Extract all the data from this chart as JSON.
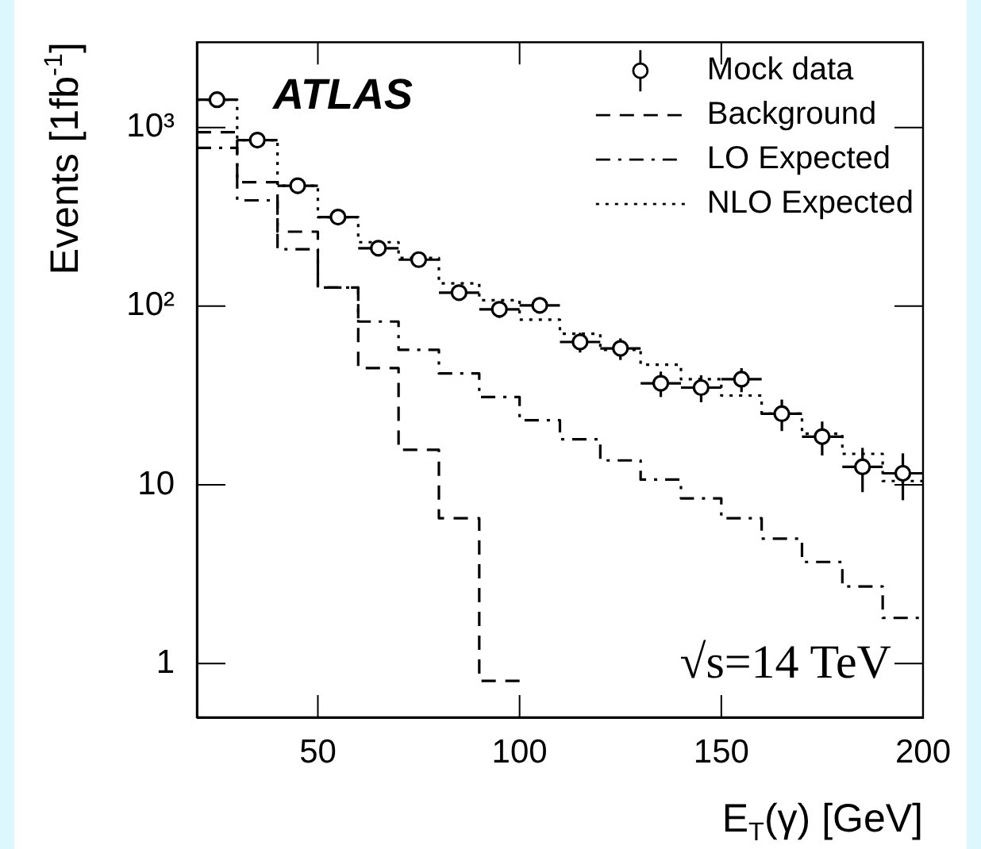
{
  "chart_data": {
    "type": "histogram",
    "xlabel": "E$_{T}$(γ) [GeV]",
    "ylabel": "Events [1fb$^{-1}$]",
    "annotations": [
      "ATLAS",
      "√s=14 TeV"
    ],
    "bins": [
      20,
      30,
      40,
      50,
      60,
      70,
      80,
      90,
      100,
      110,
      120,
      130,
      140,
      150,
      160,
      170,
      180,
      190,
      200
    ],
    "series": [
      {
        "name": "Mock data",
        "type": "scatter",
        "marker": "circle",
        "color": "#000000",
        "x": [
          25,
          35,
          45,
          55,
          65,
          75,
          85,
          95,
          105,
          115,
          125,
          135,
          145,
          155,
          165,
          175,
          185,
          195
        ],
        "values": [
          1430,
          850,
          472,
          315,
          211,
          182,
          119,
          96,
          101,
          63,
          58,
          37,
          35,
          39,
          25,
          18.6,
          12.6,
          11.6
        ],
        "errors": [
          38,
          29,
          22,
          18,
          15,
          13,
          11,
          10,
          10,
          8,
          8,
          6,
          6,
          6,
          5,
          4,
          3.5,
          3.4
        ],
        "xerrors": [
          5,
          5,
          5,
          5,
          5,
          5,
          5,
          5,
          5,
          5,
          5,
          5,
          5,
          5,
          5,
          5,
          5,
          5
        ]
      },
      {
        "name": "Background",
        "line_style": "dashed",
        "color": "#000000",
        "bins": [
          20,
          30,
          40,
          50,
          60,
          70,
          80,
          90,
          100
        ],
        "values": [
          940,
          494,
          261,
          127,
          45,
          15.7,
          6.5,
          0.8
        ]
      },
      {
        "name": "LO Expected",
        "line_style": "dashdot",
        "color": "#000000",
        "values": [
          768,
          391,
          208,
          127,
          82,
          57,
          42,
          31,
          23,
          18,
          13.7,
          10.7,
          8.4,
          6.5,
          5.0,
          3.7,
          2.7,
          1.8
        ]
      },
      {
        "name": "NLO Expected",
        "line_style": "dotted",
        "color": "#000000",
        "values": [
          1430,
          850,
          472,
          315,
          228,
          186,
          134,
          108,
          84,
          70,
          57,
          47,
          39,
          31.6,
          25,
          19.3,
          14.9,
          10.5
        ]
      }
    ],
    "xlim": [
      20,
      200
    ],
    "xticks": [
      50,
      100,
      150,
      200
    ],
    "log": "y",
    "ylim": [
      0.5,
      3000
    ],
    "yticks": [
      1,
      10,
      {
        "value": 100,
        "label": "10²"
      },
      {
        "value": 1000,
        "label": "10³"
      }
    ],
    "legend": "top right"
  }
}
